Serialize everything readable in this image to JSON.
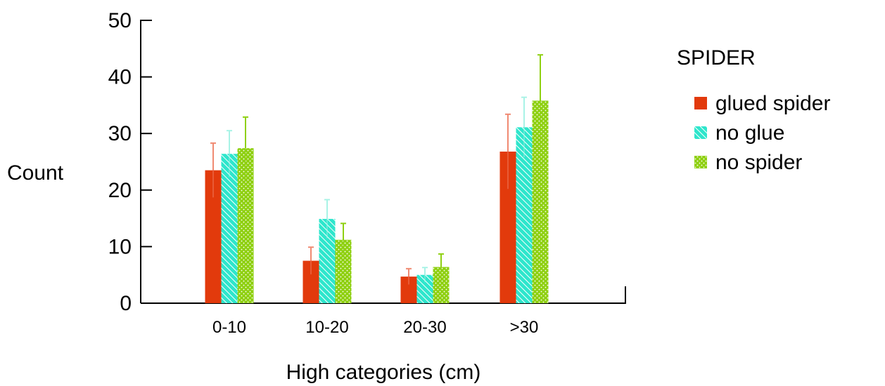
{
  "chart_data": {
    "type": "bar",
    "categories": [
      "0-10",
      "10-20",
      "20-30",
      ">30"
    ],
    "series": [
      {
        "name": "glued spider",
        "values": [
          23.5,
          7.5,
          4.7,
          26.8
        ],
        "errors": [
          4.8,
          2.4,
          1.4,
          6.6
        ],
        "color": "#e23a0c",
        "pattern": "solid"
      },
      {
        "name": "no glue",
        "values": [
          26.4,
          14.9,
          5.0,
          31.1
        ],
        "errors": [
          4.1,
          3.4,
          1.3,
          5.3
        ],
        "color": "#2ee6cc",
        "pattern": "hatch"
      },
      {
        "name": "no spider",
        "values": [
          27.4,
          11.2,
          6.4,
          35.8
        ],
        "errors": [
          5.5,
          2.9,
          2.3,
          8.1
        ],
        "color": "#8fd012",
        "pattern": "dots"
      }
    ],
    "xlabel": "High categories (cm)",
    "ylabel": "Count",
    "ylim": [
      0,
      50
    ],
    "yticks": [
      0,
      10,
      20,
      30,
      40,
      50
    ],
    "legend_title": "SPIDER",
    "legend_position": "right",
    "grid": false
  }
}
